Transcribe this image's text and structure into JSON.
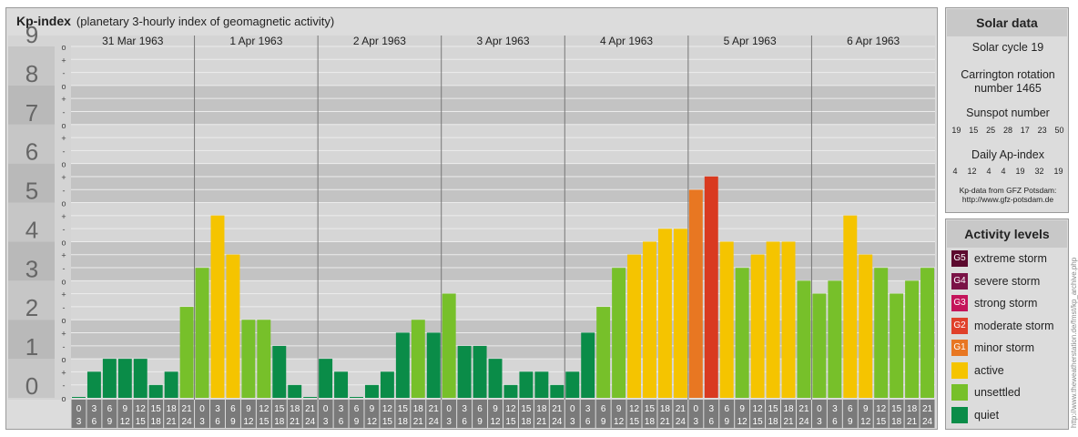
{
  "title": "Kp-index",
  "subtitle": "(planetary 3-hourly index of geomagnetic activity)",
  "solar": {
    "heading": "Solar data",
    "cycle": "Solar cycle 19",
    "carrington_line1": "Carrington rotation",
    "carrington_line2": "number 1465",
    "sunspot_label": "Sunspot number",
    "sunspot_values": [
      "19",
      "15",
      "25",
      "28",
      "17",
      "23",
      "50"
    ],
    "ap_label": "Daily Ap-index",
    "ap_values": [
      "4",
      "12",
      "4",
      "4",
      "19",
      "32",
      "19"
    ],
    "source_line1": "Kp-data from GFZ Potsdam:",
    "source_line2": "http://www.gfz-potsdam.de"
  },
  "activity": {
    "heading": "Activity levels",
    "levels": [
      {
        "code": "G5",
        "label": "extreme storm",
        "color": "#5c0a2e"
      },
      {
        "code": "G4",
        "label": "severe storm",
        "color": "#7a1246"
      },
      {
        "code": "G3",
        "label": "strong storm",
        "color": "#c4145a"
      },
      {
        "code": "G2",
        "label": "moderate storm",
        "color": "#e0402a"
      },
      {
        "code": "G1",
        "label": "minor storm",
        "color": "#e87722"
      },
      {
        "code": "",
        "label": "active",
        "color": "#f5c400"
      },
      {
        "code": "",
        "label": "unsettled",
        "color": "#77c02a"
      },
      {
        "code": "",
        "label": "quiet",
        "color": "#0a8c48"
      }
    ]
  },
  "watermark": "http://www.theweatherstation.de/fmst/kp_archive.php",
  "chart_data": {
    "type": "bar",
    "title": "Kp-index",
    "subtitle": "(planetary 3-hourly index of geomagnetic activity)",
    "ylim": [
      0,
      9
    ],
    "yticks": [
      "0",
      "1",
      "2",
      "3",
      "4",
      "5",
      "6",
      "7",
      "8",
      "9"
    ],
    "sub_ticks": [
      "o",
      "+",
      "-",
      "o",
      "+",
      "-",
      "o",
      "+",
      "-",
      "o",
      "+",
      "-",
      "o",
      "+",
      "-",
      "o",
      "+",
      "-",
      "o",
      "+",
      "-",
      "o",
      "+",
      "-",
      "o",
      "+",
      "-",
      "o"
    ],
    "days": [
      "31 Mar 1963",
      "1 Apr 1963",
      "2 Apr 1963",
      "3 Apr 1963",
      "4 Apr 1963",
      "5 Apr 1963",
      "6 Apr 1963"
    ],
    "hour_start": [
      "0",
      "3",
      "6",
      "9",
      "12",
      "15",
      "18",
      "21"
    ],
    "hour_end": [
      "3",
      "6",
      "9",
      "12",
      "15",
      "18",
      "21",
      "24"
    ],
    "values": [
      [
        0.0,
        0.67,
        1.0,
        1.0,
        1.0,
        0.33,
        0.67,
        2.33
      ],
      [
        3.33,
        4.67,
        3.67,
        2.0,
        2.0,
        1.33,
        0.33,
        0.0
      ],
      [
        1.0,
        0.67,
        0.0,
        0.33,
        0.67,
        1.67,
        2.0,
        1.67
      ],
      [
        2.67,
        1.33,
        1.33,
        1.0,
        0.33,
        0.67,
        0.67,
        0.33
      ],
      [
        0.67,
        1.67,
        2.33,
        3.33,
        3.67,
        4.0,
        4.33,
        4.33
      ],
      [
        5.33,
        5.67,
        4.0,
        3.33,
        3.67,
        4.0,
        4.0,
        3.0
      ],
      [
        2.67,
        3.0,
        4.67,
        3.67,
        3.33,
        2.67,
        3.0,
        3.33
      ]
    ]
  }
}
